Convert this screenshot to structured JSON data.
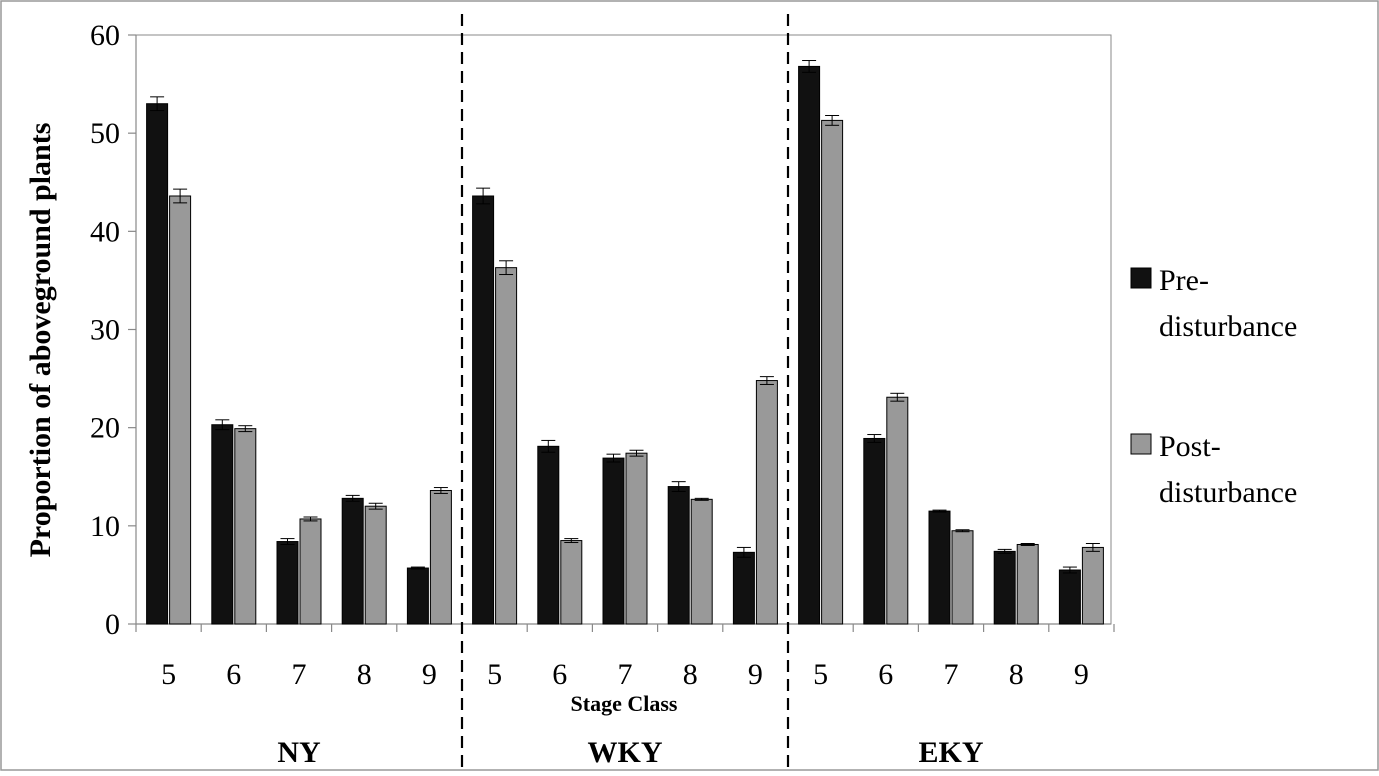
{
  "chart_data": {
    "type": "bar",
    "title": "",
    "xlabel": "Stage Class",
    "ylabel": "Proportion of aboveground plants",
    "ylim": [
      0,
      60
    ],
    "yticks": [
      0,
      10,
      20,
      30,
      40,
      50,
      60
    ],
    "grid": false,
    "legend_position": "right",
    "groups": [
      {
        "label": "NY",
        "categories": [
          "5",
          "6",
          "7",
          "8",
          "9"
        ],
        "series": [
          {
            "values": [
              53.0,
              20.3,
              8.4,
              12.8,
              5.7
            ],
            "errors": [
              0.7,
              0.5,
              0.3,
              0.3,
              0.1
            ]
          },
          {
            "values": [
              43.6,
              19.9,
              10.7,
              12.0,
              13.6
            ],
            "errors": [
              0.7,
              0.3,
              0.2,
              0.3,
              0.3
            ]
          }
        ]
      },
      {
        "label": "WKY",
        "categories": [
          "5",
          "6",
          "7",
          "8",
          "9"
        ],
        "series": [
          {
            "values": [
              43.6,
              18.1,
              16.9,
              14.0,
              7.3
            ],
            "errors": [
              0.8,
              0.6,
              0.4,
              0.5,
              0.5
            ]
          },
          {
            "values": [
              36.3,
              8.5,
              17.4,
              12.7,
              24.8
            ],
            "errors": [
              0.7,
              0.2,
              0.3,
              0.1,
              0.4
            ]
          }
        ]
      },
      {
        "label": "EKY",
        "categories": [
          "5",
          "6",
          "7",
          "8",
          "9"
        ],
        "series": [
          {
            "values": [
              56.8,
              18.9,
              11.5,
              7.4,
              5.5
            ],
            "errors": [
              0.6,
              0.4,
              0.1,
              0.2,
              0.3
            ]
          },
          {
            "values": [
              51.3,
              23.1,
              9.5,
              8.1,
              7.8
            ],
            "errors": [
              0.5,
              0.4,
              0.1,
              0.1,
              0.4
            ]
          }
        ]
      }
    ],
    "legend": [
      {
        "lines": [
          "Pre-",
          "disturbance"
        ],
        "color": "#111111"
      },
      {
        "lines": [
          "Post-",
          "disturbance"
        ],
        "color": "#999999"
      }
    ]
  }
}
